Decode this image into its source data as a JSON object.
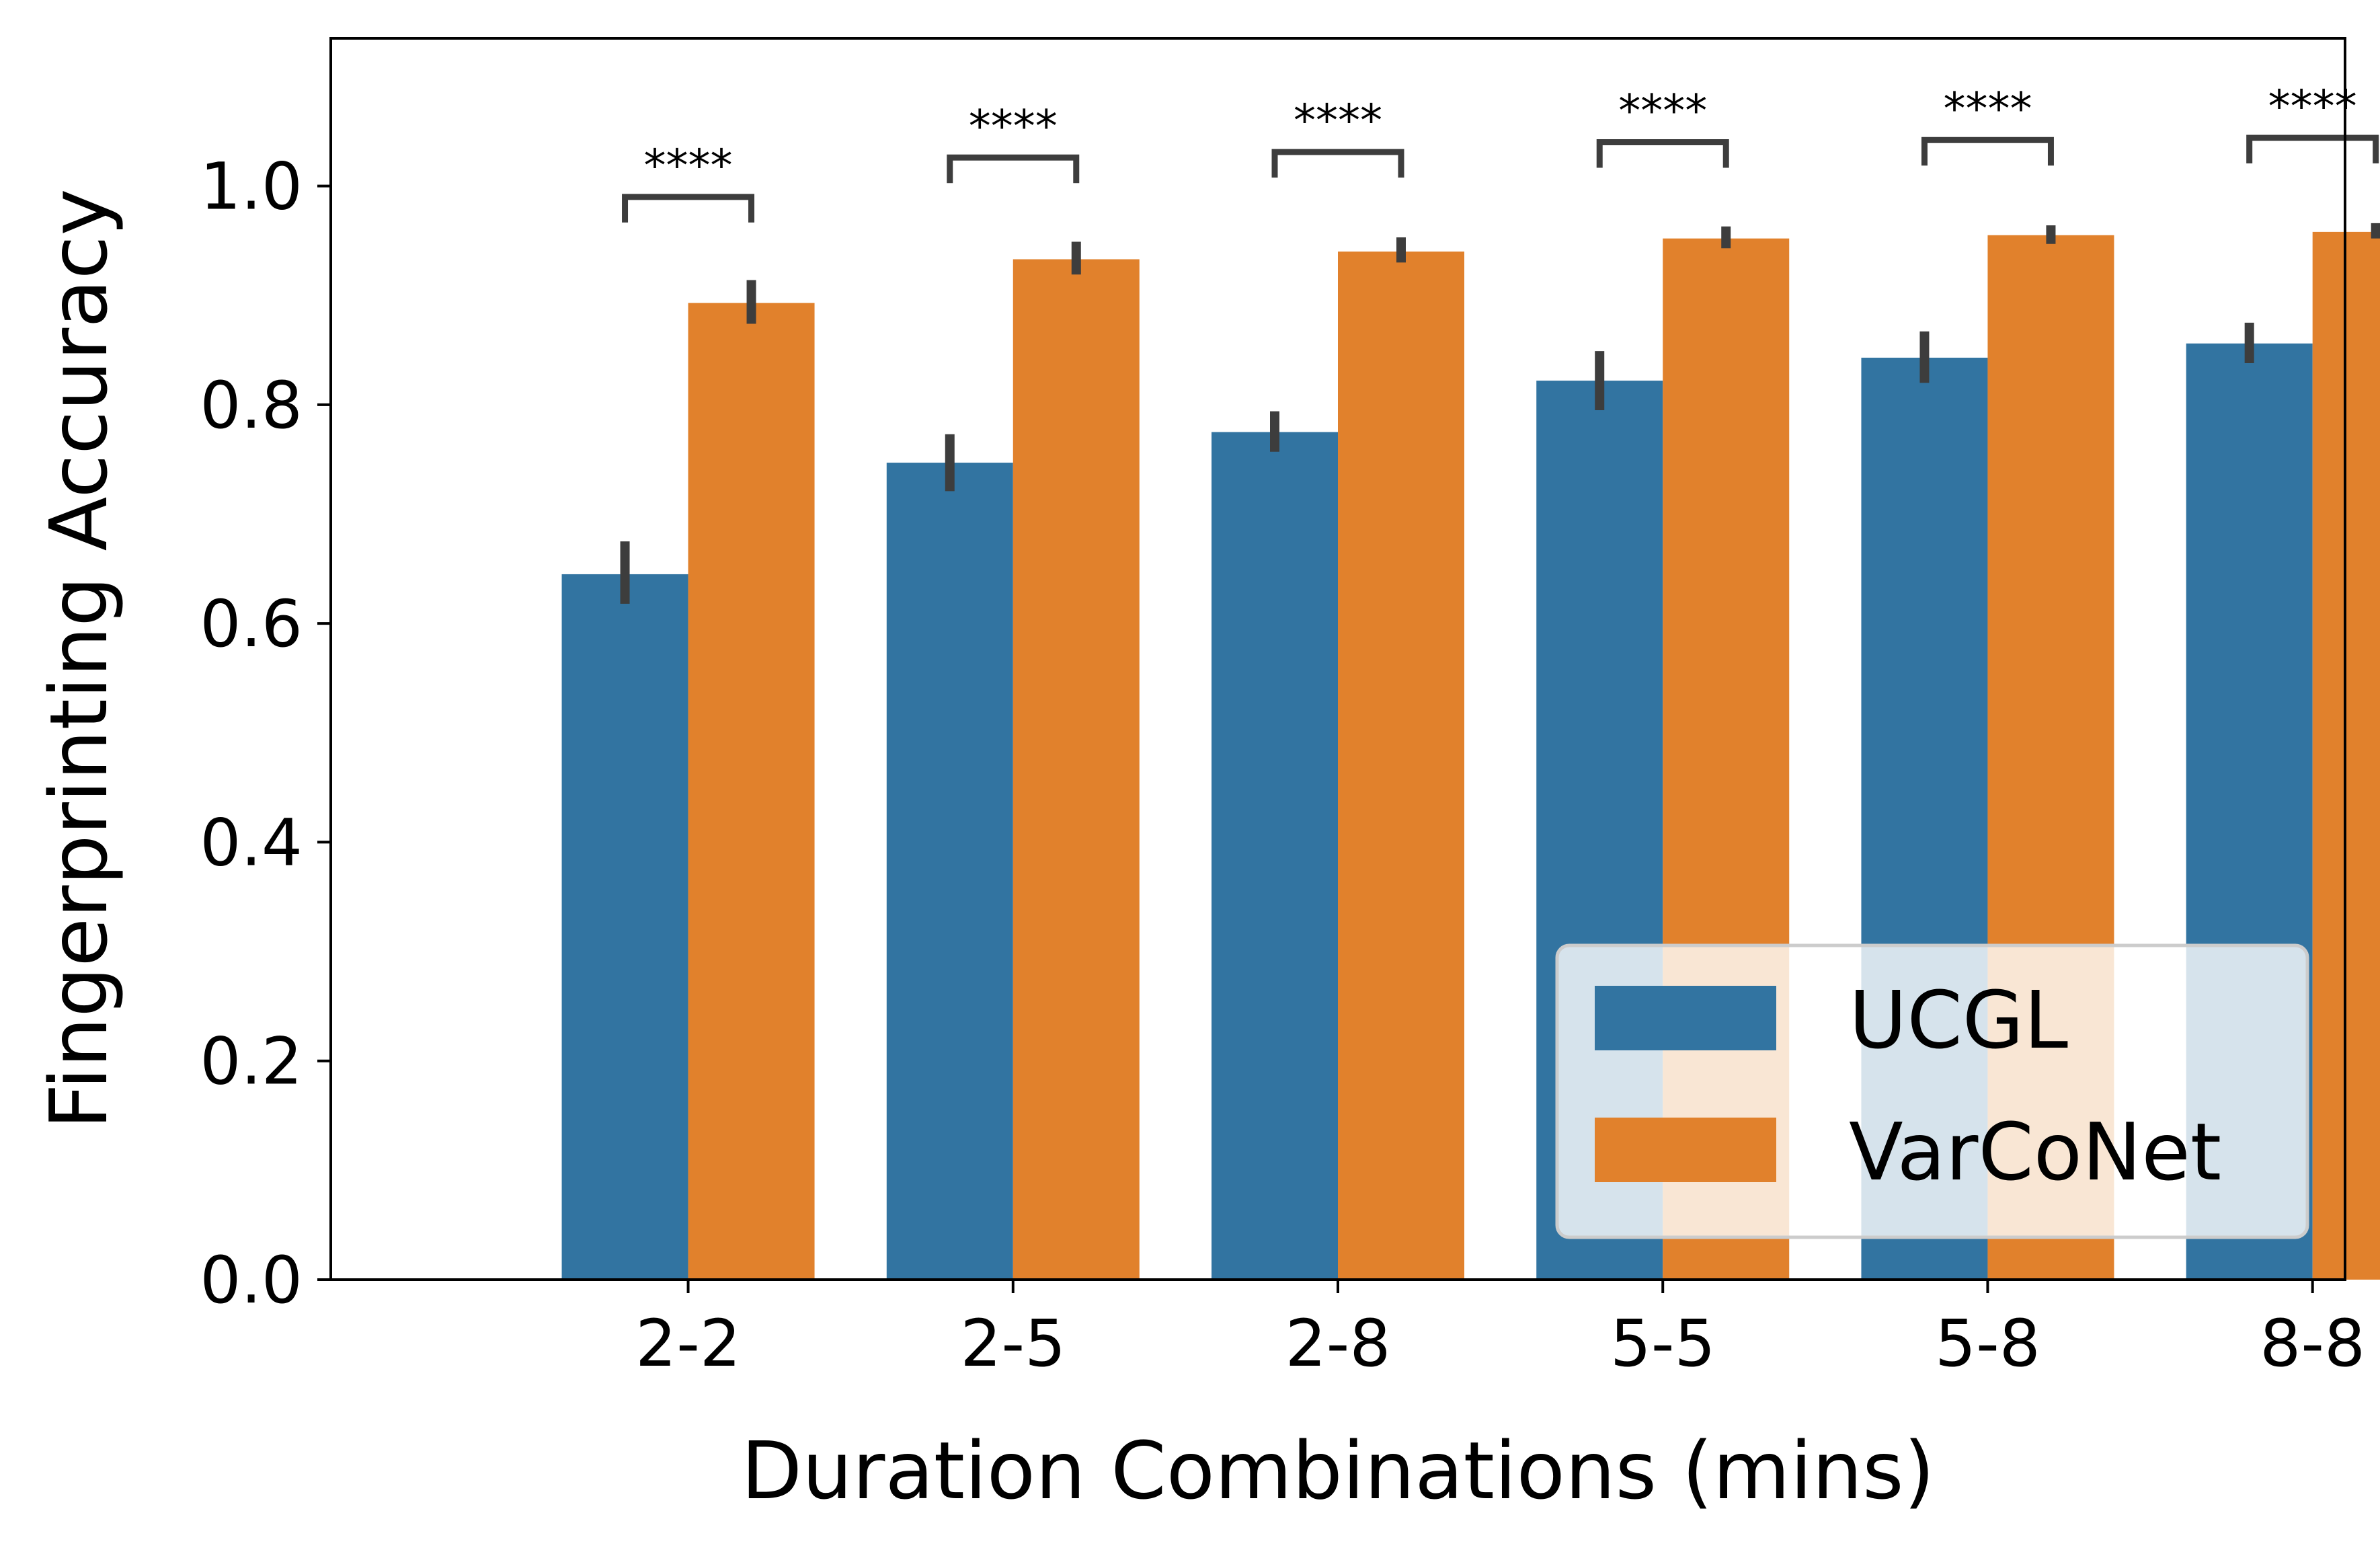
{
  "chart_data": {
    "type": "bar",
    "title": "",
    "xlabel": "Duration Combinations (mins)",
    "ylabel": "Fingerprinting Accuracy",
    "ylim": [
      0,
      1.135
    ],
    "yticks": [
      "0.0",
      "0.2",
      "0.4",
      "0.6",
      "0.8",
      "1.0"
    ],
    "ytick_values": [
      0,
      0.2,
      0.4,
      0.6,
      0.8,
      1.0
    ],
    "categories": [
      "2-2",
      "2-5",
      "2-8",
      "5-5",
      "5-8",
      "8-8"
    ],
    "series": [
      {
        "name": "UCGL",
        "color": "#3274a1",
        "values": [
          0.645,
          0.747,
          0.775,
          0.822,
          0.843,
          0.856
        ],
        "err_low": [
          0.618,
          0.721,
          0.757,
          0.795,
          0.82,
          0.838
        ],
        "err_high": [
          0.675,
          0.773,
          0.794,
          0.849,
          0.867,
          0.875
        ]
      },
      {
        "name": "VarCoNet",
        "color": "#e1812c",
        "values": [
          0.893,
          0.933,
          0.94,
          0.952,
          0.955,
          0.958
        ],
        "err_low": [
          0.874,
          0.919,
          0.93,
          0.943,
          0.947,
          0.952
        ],
        "err_high": [
          0.914,
          0.949,
          0.953,
          0.963,
          0.964,
          0.966
        ]
      }
    ],
    "significance": {
      "label": "****",
      "heights": [
        0.99,
        1.026,
        1.031,
        1.04,
        1.042,
        1.044
      ]
    },
    "legend": {
      "position": "lower-right",
      "items": [
        "UCGL",
        "VarCoNet"
      ]
    },
    "grid": false
  }
}
